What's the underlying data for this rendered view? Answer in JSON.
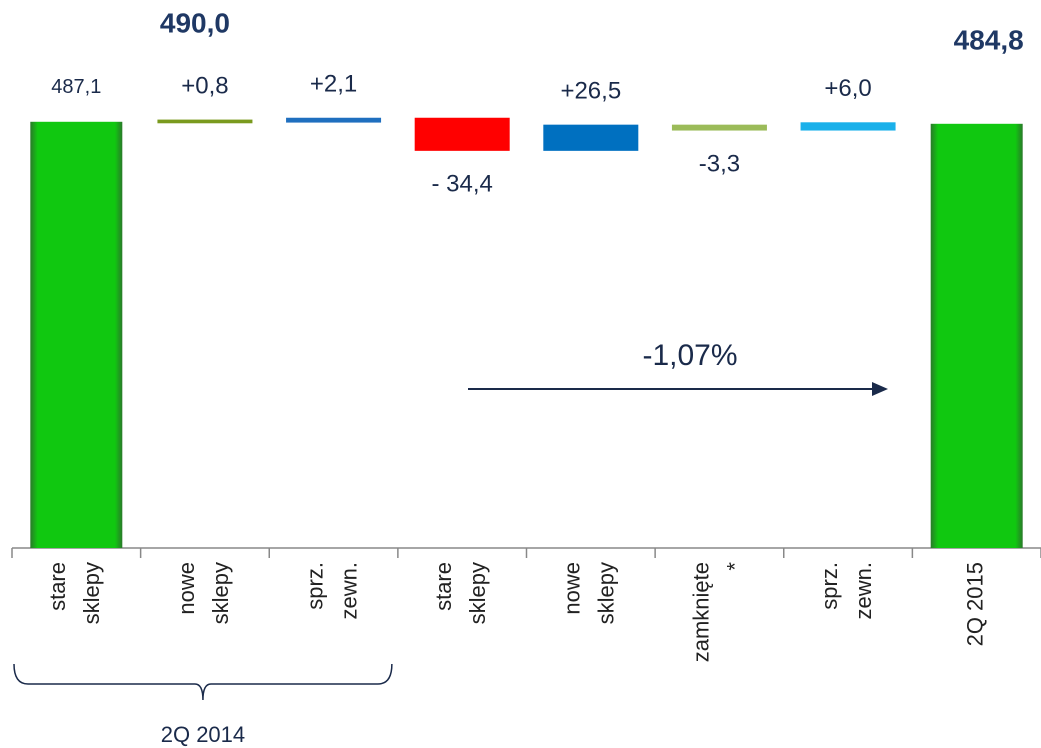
{
  "chart_data": {
    "type": "waterfall",
    "categories": [
      [
        "stare",
        "sklepy"
      ],
      [
        "nowe",
        "sklepy"
      ],
      [
        "sprz.",
        "zewn."
      ],
      [
        "stare",
        "sklepy"
      ],
      [
        "nowe",
        "sklepy"
      ],
      [
        "zamknięte",
        "*"
      ],
      [
        "sprz.",
        "zewn."
      ],
      [
        "2Q 2015"
      ]
    ],
    "measures": [
      "absolute",
      "relative",
      "relative",
      "relative",
      "relative",
      "relative",
      "relative",
      "total"
    ],
    "values": [
      487.1,
      0.8,
      2.1,
      -34.4,
      26.5,
      -3.3,
      6.0,
      484.8
    ],
    "value_labels": [
      "487,1",
      "+0,8",
      "+2,1",
      "- 34,4",
      "+26,5",
      "-3,3",
      "+6,0",
      "484,8"
    ],
    "colors": [
      "#10c810",
      "#7a9a1e",
      "#1f6fbf",
      "#ff0000",
      "#0070c0",
      "#9bbb59",
      "#1ab0ea",
      "#10c810"
    ],
    "ylim": [
      0,
      600
    ],
    "group_label": {
      "text": "2Q 2014",
      "from": 0,
      "to": 2
    },
    "subtotal_label": "490,0",
    "annotation": "-1,07%"
  }
}
